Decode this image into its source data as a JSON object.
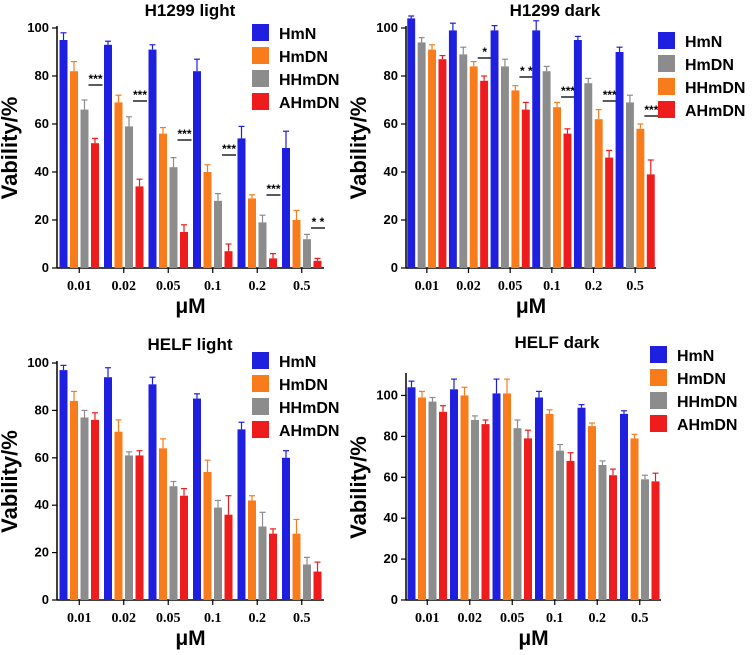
{
  "chart_data": [
    {
      "type": "bar",
      "title": "H1299 light",
      "xlabel": "μM",
      "ylabel": "Vability/%",
      "categories": [
        "0.01",
        "0.02",
        "0.05",
        "0.1",
        "0.2",
        "0.5"
      ],
      "ylim": [
        0,
        100
      ],
      "yticks": [
        0,
        20,
        40,
        60,
        80,
        100
      ],
      "series": [
        {
          "name": "HmN",
          "color": "#1f1fe0",
          "values": [
            95,
            93,
            91,
            82,
            54,
            50
          ],
          "errors": [
            3,
            1.5,
            2,
            5,
            5,
            7
          ]
        },
        {
          "name": "HmDN",
          "color": "#f97c1c",
          "values": [
            82,
            69,
            56,
            40,
            29,
            20
          ],
          "errors": [
            4,
            3,
            2.5,
            3,
            1.5,
            4
          ]
        },
        {
          "name": "HHmDN",
          "color": "#8c8c8c",
          "values": [
            66,
            59,
            42,
            28,
            19,
            12
          ],
          "errors": [
            4,
            4,
            4,
            3,
            3,
            2
          ]
        },
        {
          "name": "AHmDN",
          "color": "#ee1c1c",
          "values": [
            52,
            34,
            15,
            7,
            4,
            3
          ],
          "errors": [
            2,
            3,
            3,
            3,
            2,
            1
          ]
        }
      ],
      "annotations": [
        "***",
        "***",
        "***",
        "***",
        "***",
        "* *"
      ]
    },
    {
      "type": "bar",
      "title": "H1299 dark",
      "xlabel": "μM",
      "ylabel": "Vability/%",
      "categories": [
        "0.01",
        "0.02",
        "0.05",
        "0.1",
        "0.2",
        "0.5"
      ],
      "ylim": [
        0,
        100
      ],
      "yticks": [
        0,
        20,
        40,
        60,
        80,
        100
      ],
      "series": [
        {
          "name": "HmN",
          "color": "#1f1fe0",
          "values": [
            104,
            99,
            99,
            99,
            95,
            90
          ],
          "errors": [
            1,
            3,
            2,
            4,
            1.5,
            2
          ]
        },
        {
          "name": "HmDN",
          "color": "#8c8c8c",
          "values": [
            94,
            89,
            84,
            82,
            77,
            69
          ],
          "errors": [
            2,
            3,
            3,
            2,
            2,
            3
          ]
        },
        {
          "name": "HHmDN",
          "color": "#f97c1c",
          "values": [
            91,
            84,
            74,
            67,
            62,
            58
          ],
          "errors": [
            2,
            2,
            2,
            2,
            4,
            2
          ]
        },
        {
          "name": "AHmDN",
          "color": "#ee1c1c",
          "values": [
            87,
            78,
            66,
            56,
            46,
            39
          ],
          "errors": [
            1.5,
            2,
            3,
            2,
            3,
            6
          ]
        }
      ],
      "annotations": [
        "",
        "*",
        "* *",
        "***",
        "***",
        "***"
      ]
    },
    {
      "type": "bar",
      "title": "HELF light",
      "xlabel": "μM",
      "ylabel": "Vability/%",
      "categories": [
        "0.01",
        "0.02",
        "0.05",
        "0.1",
        "0.2",
        "0.5"
      ],
      "ylim": [
        0,
        100
      ],
      "yticks": [
        0,
        20,
        40,
        60,
        80,
        100
      ],
      "series": [
        {
          "name": "HmN",
          "color": "#1f1fe0",
          "values": [
            97,
            94,
            91,
            85,
            72,
            60
          ],
          "errors": [
            2,
            4,
            3,
            2,
            3,
            3
          ]
        },
        {
          "name": "HmDN",
          "color": "#f97c1c",
          "values": [
            84,
            71,
            64,
            54,
            42,
            28
          ],
          "errors": [
            4,
            5,
            4,
            5,
            2,
            6
          ]
        },
        {
          "name": "HHmDN",
          "color": "#8c8c8c",
          "values": [
            77,
            61,
            48,
            39,
            31,
            15
          ],
          "errors": [
            3,
            1.5,
            2,
            3,
            6,
            3
          ]
        },
        {
          "name": "AHmDN",
          "color": "#ee1c1c",
          "values": [
            76,
            61,
            44,
            36,
            28,
            12
          ],
          "errors": [
            3,
            2,
            3,
            8,
            2,
            4
          ]
        }
      ],
      "annotations": []
    },
    {
      "type": "bar",
      "title": "HELF dark",
      "xlabel": "μM",
      "ylabel": "Vability/%",
      "categories": [
        "0.01",
        "0.02",
        "0.05",
        "0.1",
        "0.2",
        "0.5"
      ],
      "ylim": [
        0,
        110
      ],
      "yticks": [
        0,
        20,
        40,
        60,
        80,
        100
      ],
      "series": [
        {
          "name": "HmN",
          "color": "#1f1fe0",
          "values": [
            104,
            103,
            101,
            99,
            94,
            91
          ],
          "errors": [
            3,
            5,
            7,
            3,
            1.5,
            1.5
          ]
        },
        {
          "name": "HmDN",
          "color": "#f97c1c",
          "values": [
            99,
            100,
            101,
            91,
            85,
            79
          ],
          "errors": [
            3,
            4,
            7,
            2,
            1.5,
            2
          ]
        },
        {
          "name": "HHmDN",
          "color": "#8c8c8c",
          "values": [
            97,
            88,
            84,
            73,
            66,
            59
          ],
          "errors": [
            2,
            2,
            4,
            3,
            2,
            2
          ]
        },
        {
          "name": "AHmDN",
          "color": "#ee1c1c",
          "values": [
            92,
            86,
            79,
            68,
            61,
            58
          ],
          "errors": [
            3,
            2,
            4,
            4,
            3,
            4
          ]
        }
      ],
      "annotations": []
    }
  ]
}
